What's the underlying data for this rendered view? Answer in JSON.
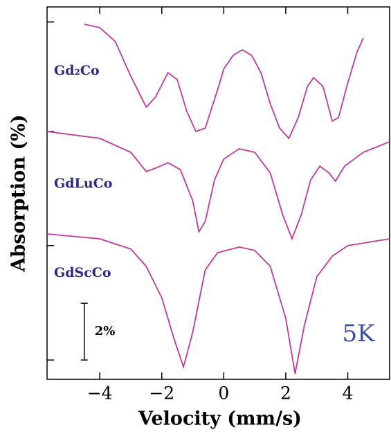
{
  "chart_data": {
    "type": "line",
    "x_label": "Velocity (mm/s)",
    "y_label": "Absorption (%)",
    "xlim": [
      -5.7,
      5.35
    ],
    "ylim": [
      0,
      13.12
    ],
    "xticks": [
      {
        "value": -4,
        "label": "−4"
      },
      {
        "value": -2,
        "label": "−2"
      },
      0,
      2,
      4
    ],
    "yticks": [
      12.59,
      8.73,
      4.71,
      0.68
    ],
    "scale_bar": {
      "value": 2,
      "label": "2%"
    },
    "annotation": "5K",
    "series": [
      {
        "name": "Gd₂Co",
        "color": "#c0399a",
        "x": [
          -4.5,
          -4,
          -3.5,
          -3,
          -2.5,
          -2.2,
          -1.8,
          -1.5,
          -1.2,
          -0.9,
          -0.6,
          -0.2,
          0,
          0.3,
          0.6,
          0.9,
          1.2,
          1.5,
          1.8,
          2.1,
          2.4,
          2.7,
          2.9,
          3.2,
          3.5,
          3.7,
          4.0,
          4.3,
          4.5
        ],
        "values": [
          12.51,
          12.39,
          11.9,
          10.68,
          9.59,
          9.95,
          10.8,
          10.56,
          9.46,
          8.73,
          8.85,
          10.2,
          10.93,
          11.41,
          11.61,
          11.41,
          10.8,
          9.71,
          8.85,
          8.49,
          9.22,
          10.32,
          10.63,
          10.32,
          9.1,
          9.22,
          10.44,
          11.54,
          12.02
        ]
      },
      {
        "name": "GdLuCo",
        "color": "#c0399a",
        "x": [
          -5.7,
          -4,
          -3,
          -2.5,
          -2.2,
          -1.8,
          -1.4,
          -1.0,
          -0.8,
          -0.6,
          -0.3,
          0,
          0.5,
          1,
          1.5,
          1.9,
          2.2,
          2.5,
          2.8,
          3.1,
          3.4,
          3.6,
          3.9,
          4.5,
          5.35
        ],
        "values": [
          8.73,
          8.49,
          8.0,
          7.32,
          7.44,
          7.63,
          7.39,
          6.29,
          5.2,
          5.56,
          7.02,
          7.76,
          8.12,
          8.0,
          7.27,
          5.8,
          4.95,
          5.8,
          7.02,
          7.51,
          7.27,
          6.98,
          7.51,
          8.0,
          8.37
        ]
      },
      {
        "name": "GdScCo",
        "color": "#c0399a",
        "x": [
          -5.7,
          -4,
          -3,
          -2.5,
          -2,
          -1.6,
          -1.3,
          -1.0,
          -0.6,
          -0.2,
          0.5,
          1.0,
          1.5,
          2.0,
          2.3,
          2.6,
          3.0,
          3.5,
          4,
          5.35
        ],
        "values": [
          5.12,
          4.95,
          4.59,
          3.98,
          2.88,
          1.41,
          0.44,
          1.66,
          3.85,
          4.46,
          4.66,
          4.54,
          3.98,
          2.15,
          0.2,
          1.9,
          3.61,
          4.34,
          4.71,
          4.95
        ]
      }
    ]
  }
}
